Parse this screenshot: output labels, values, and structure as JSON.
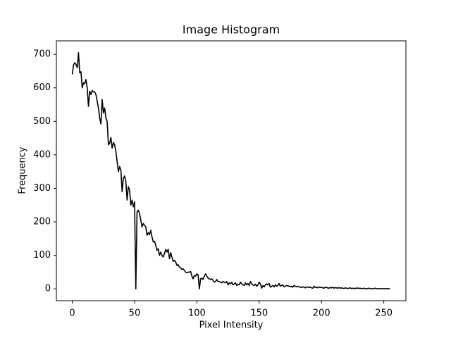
{
  "chart_data": {
    "type": "line",
    "title": "Image Histogram",
    "xlabel": "Pixel Intensity",
    "ylabel": "Frequency",
    "color": "#000000",
    "x": [
      0,
      1,
      2,
      3,
      4,
      5,
      6,
      7,
      8,
      9,
      10,
      11,
      12,
      13,
      14,
      15,
      16,
      17,
      18,
      19,
      20,
      21,
      22,
      23,
      24,
      25,
      26,
      27,
      28,
      29,
      30,
      31,
      32,
      33,
      34,
      35,
      36,
      37,
      38,
      39,
      40,
      41,
      42,
      43,
      44,
      45,
      46,
      47,
      48,
      49,
      50,
      51,
      52,
      53,
      54,
      55,
      56,
      57,
      58,
      59,
      60,
      61,
      62,
      63,
      64,
      65,
      66,
      67,
      68,
      69,
      70,
      71,
      72,
      73,
      74,
      75,
      76,
      77,
      78,
      79,
      80,
      81,
      82,
      83,
      84,
      85,
      86,
      87,
      88,
      89,
      90,
      91,
      92,
      93,
      94,
      95,
      96,
      97,
      98,
      99,
      100,
      101,
      102,
      103,
      104,
      105,
      106,
      107,
      108,
      109,
      110,
      111,
      112,
      113,
      114,
      115,
      116,
      117,
      118,
      119,
      120,
      121,
      122,
      123,
      124,
      125,
      126,
      127,
      128,
      129,
      130,
      131,
      132,
      133,
      134,
      135,
      136,
      137,
      138,
      139,
      140,
      141,
      142,
      143,
      144,
      145,
      146,
      147,
      148,
      149,
      150,
      151,
      152,
      153,
      154,
      155,
      156,
      157,
      158,
      159,
      160,
      161,
      162,
      163,
      164,
      165,
      166,
      167,
      168,
      169,
      170,
      171,
      172,
      173,
      174,
      175,
      176,
      177,
      178,
      179,
      180,
      181,
      182,
      183,
      184,
      185,
      186,
      187,
      188,
      189,
      190,
      191,
      192,
      193,
      194,
      195,
      196,
      197,
      198,
      199,
      200,
      201,
      202,
      203,
      204,
      205,
      206,
      207,
      208,
      209,
      210,
      211,
      212,
      213,
      214,
      215,
      216,
      217,
      218,
      219,
      220,
      221,
      222,
      223,
      224,
      225,
      226,
      227,
      228,
      229,
      230,
      231,
      232,
      233,
      234,
      235,
      236,
      237,
      238,
      239,
      240,
      241,
      242,
      243,
      244,
      245,
      246,
      247,
      248,
      249,
      250,
      251,
      252,
      253,
      254,
      255
    ],
    "values": [
      640,
      668,
      675,
      670,
      660,
      705,
      645,
      648,
      600,
      615,
      612,
      625,
      600,
      545,
      590,
      580,
      592,
      588,
      588,
      580,
      560,
      540,
      510,
      492,
      565,
      525,
      540,
      510,
      500,
      430,
      435,
      452,
      420,
      437,
      430,
      410,
      380,
      350,
      365,
      355,
      290,
      330,
      337,
      320,
      265,
      305,
      295,
      250,
      265,
      245,
      260,
      0,
      230,
      235,
      225,
      205,
      185,
      195,
      190,
      185,
      160,
      168,
      162,
      175,
      155,
      140,
      142,
      130,
      115,
      120,
      100,
      110,
      100,
      95,
      105,
      118,
      110,
      118,
      90,
      108,
      95,
      82,
      85,
      80,
      70,
      72,
      65,
      62,
      58,
      60,
      55,
      50,
      48,
      50,
      50,
      52,
      38,
      30,
      40,
      38,
      45,
      42,
      0,
      30,
      32,
      28,
      38,
      45,
      38,
      32,
      30,
      28,
      30,
      25,
      20,
      22,
      28,
      22,
      22,
      20,
      18,
      22,
      20,
      18,
      22,
      12,
      18,
      15,
      20,
      12,
      15,
      18,
      10,
      14,
      12,
      20,
      15,
      12,
      10,
      18,
      12,
      16,
      10,
      22,
      15,
      12,
      10,
      14,
      8,
      12,
      20,
      15,
      2,
      10,
      6,
      12,
      15,
      12,
      16,
      5,
      8,
      10,
      6,
      12,
      8,
      10,
      16,
      8,
      10,
      12,
      6,
      8,
      10,
      9,
      8,
      6,
      8,
      5,
      10,
      8,
      6,
      8,
      6,
      5,
      4,
      6,
      5,
      3,
      6,
      5,
      4,
      6,
      3,
      2,
      8,
      4,
      5,
      3,
      6,
      4,
      5,
      3,
      2,
      5,
      4,
      3,
      2,
      4,
      3,
      5,
      2,
      4,
      3,
      2,
      4,
      2,
      3,
      2,
      1,
      3,
      2,
      1,
      2,
      3,
      1,
      2,
      1,
      2,
      1,
      3,
      1,
      2,
      1,
      1,
      2,
      1,
      0,
      1,
      2,
      1,
      1,
      0,
      1,
      2,
      1,
      0,
      1,
      1,
      0,
      1,
      1,
      0,
      1,
      0,
      1,
      0
    ],
    "xlim": [
      -12.75,
      267.75
    ],
    "xticks": [
      0,
      50,
      100,
      150,
      200,
      250
    ],
    "ylim": [
      -35.25,
      740.25
    ],
    "yticks": [
      0,
      100,
      200,
      300,
      400,
      500,
      600,
      700
    ]
  }
}
